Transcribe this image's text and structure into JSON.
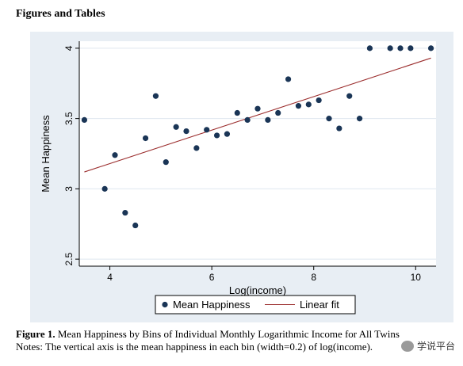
{
  "page": {
    "heading": "Figures and Tables",
    "caption_label": "Figure 1.",
    "caption_text": " Mean Happiness by Bins of Individual Monthly Logarithmic Income for All Twins",
    "note_text": "Notes: The vertical axis is the mean happiness in each bin (width=0.2) of log(income).",
    "watermark": "学说平台"
  },
  "colors": {
    "panel_bg": "#e8eef4",
    "plot_bg": "#ffffff",
    "grid": "#dfe7ef",
    "marker": "#1a3556",
    "fit_line": "#9b2d2d"
  },
  "chart_data": {
    "type": "scatter",
    "xlabel": "Log(income)",
    "ylabel": "Mean Happiness",
    "xlim": [
      3.4,
      10.4
    ],
    "ylim": [
      2.45,
      4.05
    ],
    "xticks": [
      4,
      6,
      8,
      10
    ],
    "yticks": [
      2.5,
      3,
      3.5,
      4
    ],
    "grid": true,
    "legend_position": "bottom",
    "series": [
      {
        "name": "Mean Happiness",
        "kind": "points",
        "x": [
          3.5,
          3.9,
          4.1,
          4.3,
          4.5,
          4.7,
          4.9,
          5.1,
          5.3,
          5.5,
          5.7,
          5.9,
          6.1,
          6.3,
          6.5,
          6.7,
          6.9,
          7.1,
          7.3,
          7.5,
          7.7,
          7.9,
          8.1,
          8.3,
          8.5,
          8.7,
          8.9,
          9.1,
          9.5,
          9.7,
          9.9,
          10.3
        ],
        "y": [
          3.49,
          3.0,
          3.24,
          2.83,
          2.74,
          3.36,
          3.66,
          3.19,
          3.44,
          3.41,
          3.29,
          3.42,
          3.38,
          3.39,
          3.54,
          3.49,
          3.57,
          3.49,
          3.54,
          3.78,
          3.59,
          3.6,
          3.63,
          3.5,
          3.43,
          3.66,
          3.5,
          4.0,
          4.0,
          4.0,
          4.0,
          4.0
        ]
      },
      {
        "name": "Linear fit",
        "kind": "line",
        "x": [
          3.5,
          10.3
        ],
        "y": [
          3.12,
          3.93
        ]
      }
    ]
  }
}
